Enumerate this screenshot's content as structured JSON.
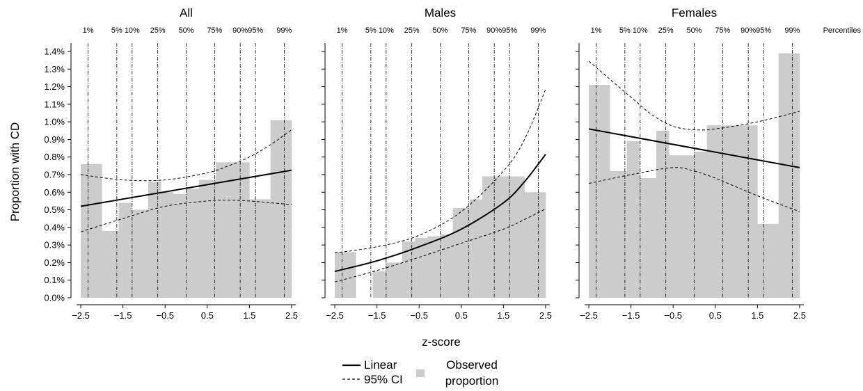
{
  "chart_data": {
    "type": "bar",
    "ylabel": "Proportion with CD",
    "xlabel": "z-score",
    "percentiles_label": "Percentiles",
    "percentile_names": [
      "1%",
      "5%",
      "10%",
      "25%",
      "50%",
      "75%",
      "90%",
      "95%",
      "99%"
    ],
    "percentile_z": [
      -2.326,
      -1.645,
      -1.282,
      -0.674,
      0,
      0.674,
      1.282,
      1.645,
      2.326
    ],
    "xticks": [
      -2.5,
      -1.5,
      -0.5,
      0.5,
      1.5,
      2.5
    ],
    "xtick_labels": [
      "−2.5",
      "−1.5",
      "−0.5",
      "0.5",
      "1.5",
      "2.5"
    ],
    "xlim": [
      -2.6,
      2.6
    ],
    "ylim": [
      0,
      1.4
    ],
    "yticks": [
      0,
      0.1,
      0.2,
      0.3,
      0.4,
      0.5,
      0.6,
      0.7,
      0.8,
      0.9,
      1.0,
      1.1,
      1.2,
      1.3,
      1.4
    ],
    "ytick_labels": [
      "0.0%",
      "0.1%",
      "0.2%",
      "0.3%",
      "0.4%",
      "0.5%",
      "0.6%",
      "0.7%",
      "0.8%",
      "0.9%",
      "1.0%",
      "1.1%",
      "1.2%",
      "1.3%",
      "1.4%"
    ],
    "bin_edges": [
      -2.5,
      -2.0,
      -1.6,
      -1.3,
      -0.9,
      -0.6,
      -0.3,
      0.0,
      0.3,
      0.7,
      1.0,
      1.5,
      2.0,
      2.5
    ],
    "panels": [
      {
        "title": "All",
        "observed_proportion": [
          0.76,
          0.38,
          0.54,
          0.5,
          0.66,
          0.6,
          0.59,
          0.62,
          0.67,
          0.77,
          0.77,
          0.56,
          1.01
        ],
        "linear": {
          "x": [
            -2.5,
            2.5
          ],
          "y": [
            0.52,
            0.725
          ]
        },
        "ci_lower": {
          "x": [
            -2.5,
            -1.5,
            -0.5,
            0.5,
            1.0,
            1.5,
            2.0,
            2.5
          ],
          "y": [
            0.375,
            0.45,
            0.52,
            0.55,
            0.555,
            0.55,
            0.54,
            0.53
          ]
        },
        "ci_upper": {
          "x": [
            -2.5,
            -1.5,
            -0.5,
            0.5,
            1.0,
            1.5,
            2.0,
            2.5
          ],
          "y": [
            0.7,
            0.67,
            0.67,
            0.71,
            0.75,
            0.8,
            0.87,
            0.955
          ]
        }
      },
      {
        "title": "Males",
        "observed_proportion": [
          0.26,
          0.0,
          0.15,
          0.2,
          0.32,
          0.34,
          0.35,
          0.36,
          0.51,
          0.56,
          0.69,
          0.69,
          0.6
        ],
        "linear": {
          "x": [
            -2.5,
            -1.5,
            -0.5,
            0.5,
            1.5,
            2.0,
            2.5
          ],
          "y": [
            0.15,
            0.21,
            0.29,
            0.39,
            0.54,
            0.66,
            0.815
          ]
        },
        "ci_lower": {
          "x": [
            -2.5,
            -1.5,
            -0.5,
            0.5,
            1.5,
            2.0,
            2.5
          ],
          "y": [
            0.09,
            0.155,
            0.23,
            0.31,
            0.39,
            0.445,
            0.505
          ]
        },
        "ci_upper": {
          "x": [
            -2.5,
            -1.5,
            -0.5,
            0.5,
            1.5,
            2.0,
            2.5
          ],
          "y": [
            0.255,
            0.29,
            0.355,
            0.49,
            0.72,
            0.9,
            1.185
          ]
        }
      },
      {
        "title": "Females",
        "observed_proportion": [
          1.21,
          0.72,
          0.89,
          0.68,
          0.95,
          0.81,
          0.81,
          0.83,
          0.98,
          0.98,
          0.98,
          0.42,
          1.39
        ],
        "linear": {
          "x": [
            -2.5,
            2.5
          ],
          "y": [
            0.96,
            0.74
          ]
        },
        "ci_lower": {
          "x": [
            -2.5,
            -1.5,
            -0.5,
            0.0,
            0.5,
            1.5,
            2.5
          ],
          "y": [
            0.65,
            0.7,
            0.74,
            0.72,
            0.68,
            0.58,
            0.49
          ]
        },
        "ci_upper": {
          "x": [
            -2.5,
            -1.5,
            -1.0,
            -0.5,
            0.0,
            0.5,
            1.5,
            2.5
          ],
          "y": [
            1.345,
            1.14,
            1.04,
            0.975,
            0.955,
            0.96,
            1.0,
            1.06
          ]
        }
      }
    ],
    "legend": {
      "linear_label": "Linear",
      "ci_label": "95% CI",
      "observed_label_line1": "Observed",
      "observed_label_line2": "proportion"
    },
    "colors": {
      "bar": "#cccccc",
      "line": "#000000",
      "grid": "#000000"
    }
  }
}
